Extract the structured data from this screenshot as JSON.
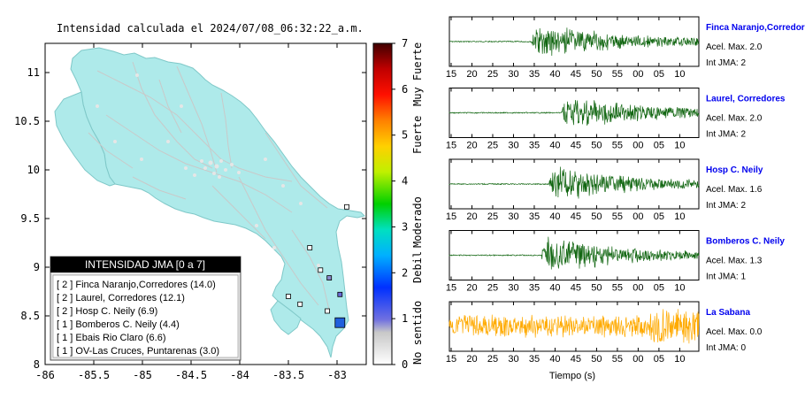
{
  "title": "Intensidad calculada el 2024/07/08_06:32:22_a.m.",
  "map": {
    "lon_ticks": [
      "-86",
      "-85.5",
      "-85",
      "-84.5",
      "-84",
      "-83.5",
      "-83"
    ],
    "lat_ticks": [
      "11",
      "10.5",
      "10",
      "9.5",
      "9",
      "8.5",
      "8"
    ],
    "lon_range": [
      -86,
      -82.7
    ],
    "lat_range": [
      8,
      11.3
    ],
    "land_color": "#aeeaea",
    "stations": [
      {
        "lon": -83.08,
        "lat": 8.89,
        "color": "#8a8acc",
        "size": "small"
      },
      {
        "lon": -82.97,
        "lat": 8.72,
        "color": "#6a6ad6",
        "size": "small"
      },
      {
        "lon": -83.17,
        "lat": 8.97,
        "color": "#ffffff",
        "size": "small"
      },
      {
        "lon": -82.97,
        "lat": 8.43,
        "color": "#1f5fdd",
        "size": "large"
      },
      {
        "lon": -83.28,
        "lat": 9.2,
        "color": "#ffffff",
        "size": "small"
      },
      {
        "lon": -83.5,
        "lat": 8.7,
        "color": "#ffffff",
        "size": "small"
      },
      {
        "lon": -83.38,
        "lat": 8.62,
        "color": "#ffffff",
        "size": "small"
      },
      {
        "lon": -83.1,
        "lat": 8.55,
        "color": "#ffffff",
        "size": "small"
      },
      {
        "lon": -82.9,
        "lat": 9.62,
        "color": "#ffffff",
        "size": "small"
      }
    ]
  },
  "legend": {
    "title": "INTENSIDAD JMA [0 a 7]",
    "items": [
      "[ 2 ]  Finca Naranjo,Corredores (14.0)",
      "[ 2 ]  Laurel, Corredores (12.1)",
      "[ 2 ]  Hosp C. Neily (6.9)",
      "[ 1 ]  Bomberos C. Neily (4.4)",
      "[ 1 ]  Ebais Rio Claro (6.6)",
      "[ 1 ]  OV-Las Cruces, Puntarenas (3.0)"
    ]
  },
  "colorbar": {
    "ticks": [
      "0",
      "1",
      "2",
      "3",
      "4",
      "5",
      "6",
      "7"
    ],
    "labels": [
      "No sentido",
      "Debil",
      "Moderado",
      "Fuerte",
      "Muy Fuerte"
    ]
  },
  "waveforms": {
    "x_ticks": [
      "15",
      "20",
      "25",
      "30",
      "35",
      "40",
      "45",
      "50",
      "55",
      "00",
      "05",
      "10"
    ],
    "xlabel": "Tiempo (s)",
    "stations": [
      {
        "name": "Finca Naranjo,Corredor",
        "accel": "Acel. Max. 2.0",
        "jma": "Int JMA: 2",
        "color": "#116611",
        "onset": 0.33
      },
      {
        "name": "Laurel, Corredores",
        "accel": "Acel. Max. 2.0",
        "jma": "Int JMA: 2",
        "color": "#116611",
        "onset": 0.45
      },
      {
        "name": "Hosp C. Neily",
        "accel": "Acel. Max. 1.6",
        "jma": "Int JMA: 2",
        "color": "#116611",
        "onset": 0.4
      },
      {
        "name": "Bomberos C. Neily",
        "accel": "Acel. Max. 1.3",
        "jma": "Int JMA: 1",
        "color": "#116611",
        "onset": 0.37
      },
      {
        "name": "La Sabana",
        "accel": "Acel. Max. 0.0",
        "jma": "Int JMA: 0",
        "color": "#ffaa00",
        "onset": 0.0
      }
    ]
  }
}
